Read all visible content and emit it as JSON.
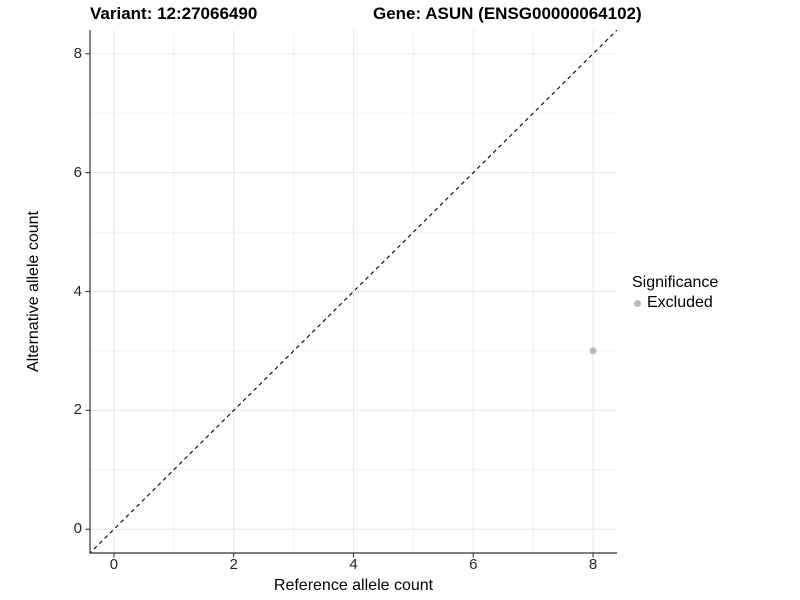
{
  "header": {
    "variant_title": "Variant: 12:27066490",
    "gene_title": "Gene: ASUN (ENSG00000064102)"
  },
  "chart_data": {
    "type": "scatter",
    "title": "Variant: 12:27066490  /  Gene: ASUN (ENSG00000064102)",
    "xlabel": "Reference allele count",
    "ylabel": "Alternative allele count",
    "xlim": [
      -0.4,
      8.4
    ],
    "ylim": [
      -0.4,
      8.4
    ],
    "x_ticks": [
      0,
      2,
      4,
      6,
      8
    ],
    "y_ticks": [
      0,
      2,
      4,
      6,
      8
    ],
    "x_minor_ticks": [
      1,
      3,
      5,
      7
    ],
    "y_minor_ticks": [
      1,
      3,
      5,
      7
    ],
    "grid": true,
    "series": [
      {
        "name": "Excluded",
        "points": [
          {
            "x": 8,
            "y": 3
          }
        ]
      }
    ],
    "abline": {
      "slope": 1,
      "intercept": 0,
      "style": "dashed"
    },
    "legend": {
      "title": "Significance",
      "position": "right",
      "items": [
        {
          "label": "Excluded",
          "color": "#b9b9b9"
        }
      ]
    },
    "colors": {
      "point": "#b9b9b9",
      "grid_major": "#e7e7e7",
      "grid_minor": "#f2f2f2",
      "axis_line": "#333333",
      "abline": "#000000",
      "background": "#ffffff"
    }
  }
}
